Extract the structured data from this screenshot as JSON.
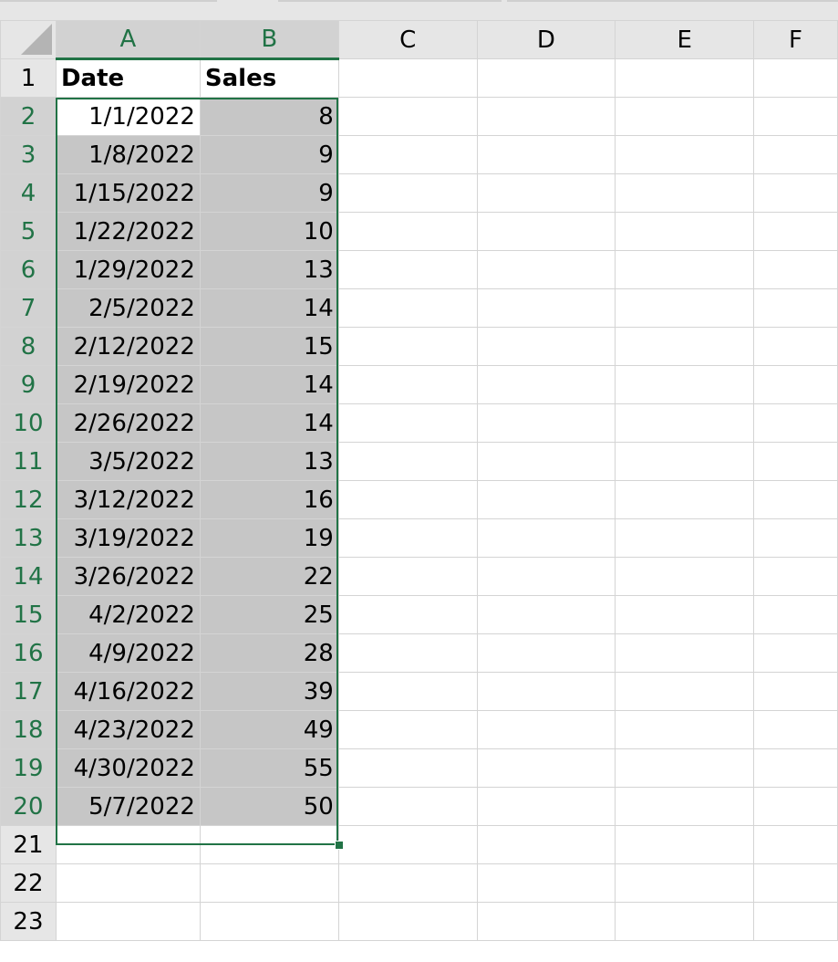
{
  "columns": [
    "A",
    "B",
    "C",
    "D",
    "E",
    "F"
  ],
  "selected_columns": [
    "A",
    "B"
  ],
  "selection": {
    "range": "A2:B20",
    "active_cell": "A2",
    "accent_color": "#217346"
  },
  "header_row": {
    "row": 1,
    "cells": [
      "Date",
      "Sales"
    ]
  },
  "rows": [
    {
      "row": 2,
      "date": "1/1/2022",
      "sales": "8"
    },
    {
      "row": 3,
      "date": "1/8/2022",
      "sales": "9"
    },
    {
      "row": 4,
      "date": "1/15/2022",
      "sales": "9"
    },
    {
      "row": 5,
      "date": "1/22/2022",
      "sales": "10"
    },
    {
      "row": 6,
      "date": "1/29/2022",
      "sales": "13"
    },
    {
      "row": 7,
      "date": "2/5/2022",
      "sales": "14"
    },
    {
      "row": 8,
      "date": "2/12/2022",
      "sales": "15"
    },
    {
      "row": 9,
      "date": "2/19/2022",
      "sales": "14"
    },
    {
      "row": 10,
      "date": "2/26/2022",
      "sales": "14"
    },
    {
      "row": 11,
      "date": "3/5/2022",
      "sales": "13"
    },
    {
      "row": 12,
      "date": "3/12/2022",
      "sales": "16"
    },
    {
      "row": 13,
      "date": "3/19/2022",
      "sales": "19"
    },
    {
      "row": 14,
      "date": "3/26/2022",
      "sales": "22"
    },
    {
      "row": 15,
      "date": "4/2/2022",
      "sales": "25"
    },
    {
      "row": 16,
      "date": "4/9/2022",
      "sales": "28"
    },
    {
      "row": 17,
      "date": "4/16/2022",
      "sales": "39"
    },
    {
      "row": 18,
      "date": "4/23/2022",
      "sales": "49"
    },
    {
      "row": 19,
      "date": "4/30/2022",
      "sales": "55"
    },
    {
      "row": 20,
      "date": "5/7/2022",
      "sales": "50"
    }
  ],
  "empty_rows": [
    21,
    22,
    23
  ]
}
